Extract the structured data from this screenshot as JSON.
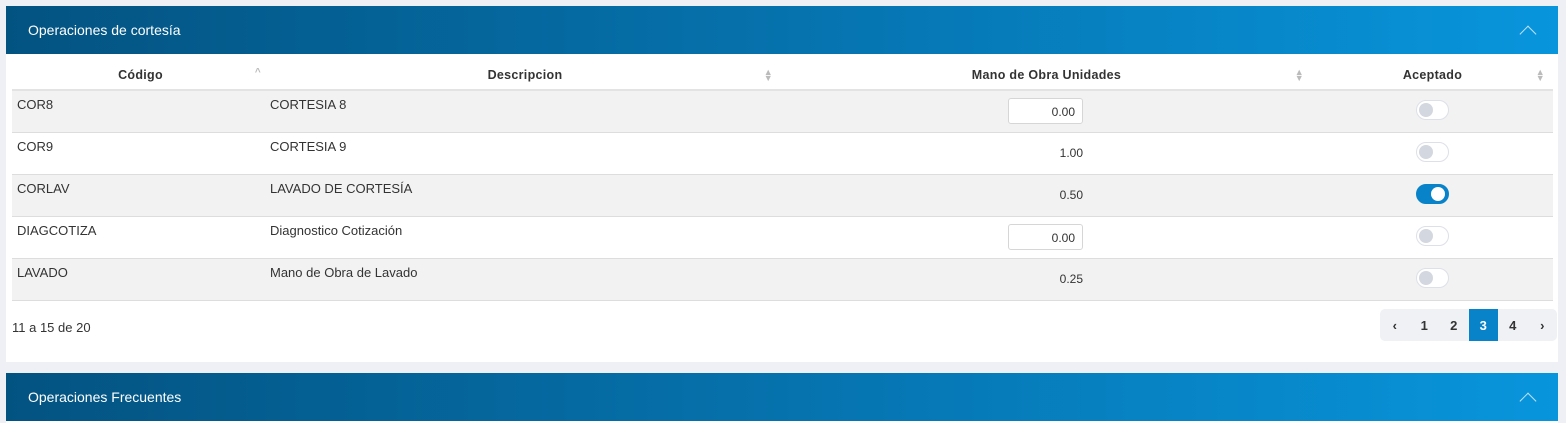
{
  "panel1": {
    "title": "Operaciones de cortesía",
    "columns": [
      "Código",
      "Descripcion",
      "Mano de Obra Unidades",
      "Aceptado"
    ],
    "rows": [
      {
        "code": "COR8",
        "desc": "CORTESIA 8",
        "units": "0.00",
        "editable": true,
        "accepted": false
      },
      {
        "code": "COR9",
        "desc": "CORTESIA 9",
        "units": "1.00",
        "editable": false,
        "accepted": false
      },
      {
        "code": "CORLAV",
        "desc": "LAVADO DE CORTESÍA",
        "units": "0.50",
        "editable": false,
        "accepted": true
      },
      {
        "code": "DIAGCOTIZA",
        "desc": "Diagnostico Cotización",
        "units": "0.00",
        "editable": true,
        "accepted": false
      },
      {
        "code": "LAVADO",
        "desc": "Mano de Obra de Lavado",
        "units": "0.25",
        "editable": false,
        "accepted": false
      }
    ],
    "info": "11 a 15 de 20",
    "pagination": {
      "prev": "‹",
      "pages": [
        "1",
        "2",
        "3",
        "4"
      ],
      "current": "3",
      "next": "›"
    }
  },
  "panel2": {
    "title": "Operaciones Frecuentes"
  },
  "colors": {
    "accent": "#0883c9",
    "header_start": "#035381",
    "header_end": "#0895dc"
  }
}
